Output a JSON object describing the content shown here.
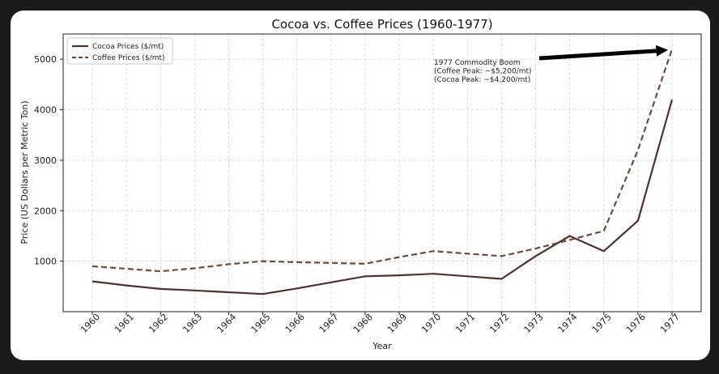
{
  "chart_data": {
    "type": "line",
    "title": "Cocoa vs. Coffee Prices (1960-1977)",
    "xlabel": "Year",
    "ylabel": "Price (US Dollars per Metric Ton)",
    "x": [
      1960,
      1961,
      1962,
      1963,
      1964,
      1965,
      1966,
      1967,
      1968,
      1969,
      1970,
      1971,
      1972,
      1973,
      1974,
      1975,
      1976,
      1977
    ],
    "x_tick_labels": [
      "1960",
      "1961",
      "1962",
      "1963",
      "1964",
      "1965",
      "1966",
      "1967",
      "1968",
      "1969",
      "1970",
      "1971",
      "1972",
      "1973",
      "1974",
      "1975",
      "1976",
      "1977"
    ],
    "y_ticks": [
      1000,
      2000,
      3000,
      4000,
      5000
    ],
    "y_tick_labels": [
      "1000",
      "2000",
      "3000",
      "4000",
      "5000"
    ],
    "ylim": [
      0,
      5500
    ],
    "series": [
      {
        "name": "Cocoa Prices ($/mt)",
        "style": "solid",
        "color": "#4e3230",
        "values": [
          600,
          520,
          450,
          420,
          385,
          350,
          460,
          580,
          700,
          720,
          750,
          700,
          650,
          1100,
          1500,
          1200,
          1800,
          4200
        ]
      },
      {
        "name": "Coffee Prices ($/mt)",
        "style": "dashed",
        "color": "#6e4a3a",
        "values": [
          900,
          850,
          800,
          860,
          940,
          1000,
          980,
          965,
          950,
          1080,
          1200,
          1150,
          1100,
          1250,
          1420,
          1600,
          3200,
          5200
        ]
      }
    ],
    "grid": true,
    "legend_position": "top-left",
    "annotation": {
      "lines": [
        "1977 Commodity Boom",
        "(Coffee Peak: ~$5,200/mt)",
        "(Cocoa Peak: ~$4,200/mt)"
      ],
      "points_to": {
        "x": 1977,
        "y": 5200
      },
      "arrow_color": "#000000"
    }
  }
}
